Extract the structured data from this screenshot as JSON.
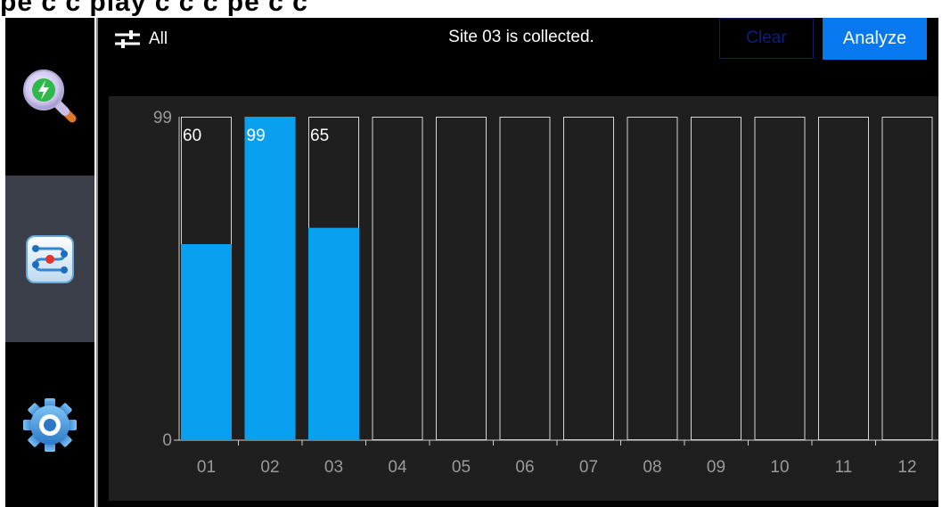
{
  "top_strip": {
    "text": "pe    c      c          play  c      c  c  pe     c  c"
  },
  "sidebar": {
    "items": [
      {
        "name": "analyze",
        "icon": "search-lightning-icon"
      },
      {
        "name": "collect",
        "icon": "sensor-sites-icon",
        "active": true
      },
      {
        "name": "settings",
        "icon": "gear-icon"
      }
    ]
  },
  "header": {
    "filter_icon": "sliders-icon",
    "filter_label": "All",
    "status": "Site 03 is collected.",
    "clear_label": "Clear",
    "analyze_label": "Analyze"
  },
  "colors": {
    "bar_fill": "#0aa0f0",
    "accent_button": "#0778f0",
    "active_nav": "#3a3f4a",
    "panel": "#1f1f1f"
  },
  "chart_data": {
    "type": "bar",
    "categories": [
      "01",
      "02",
      "03",
      "04",
      "05",
      "06",
      "07",
      "08",
      "09",
      "10",
      "11",
      "12"
    ],
    "values": [
      60,
      99,
      65,
      null,
      null,
      null,
      null,
      null,
      null,
      null,
      null,
      null
    ],
    "data_labels": [
      "60",
      "99",
      "65",
      "",
      "",
      "",
      "",
      "",
      "",
      "",
      "",
      ""
    ],
    "ylim": [
      0,
      99
    ],
    "y_ticks": [
      "0",
      "99"
    ],
    "title": "",
    "xlabel": "",
    "ylabel": ""
  }
}
